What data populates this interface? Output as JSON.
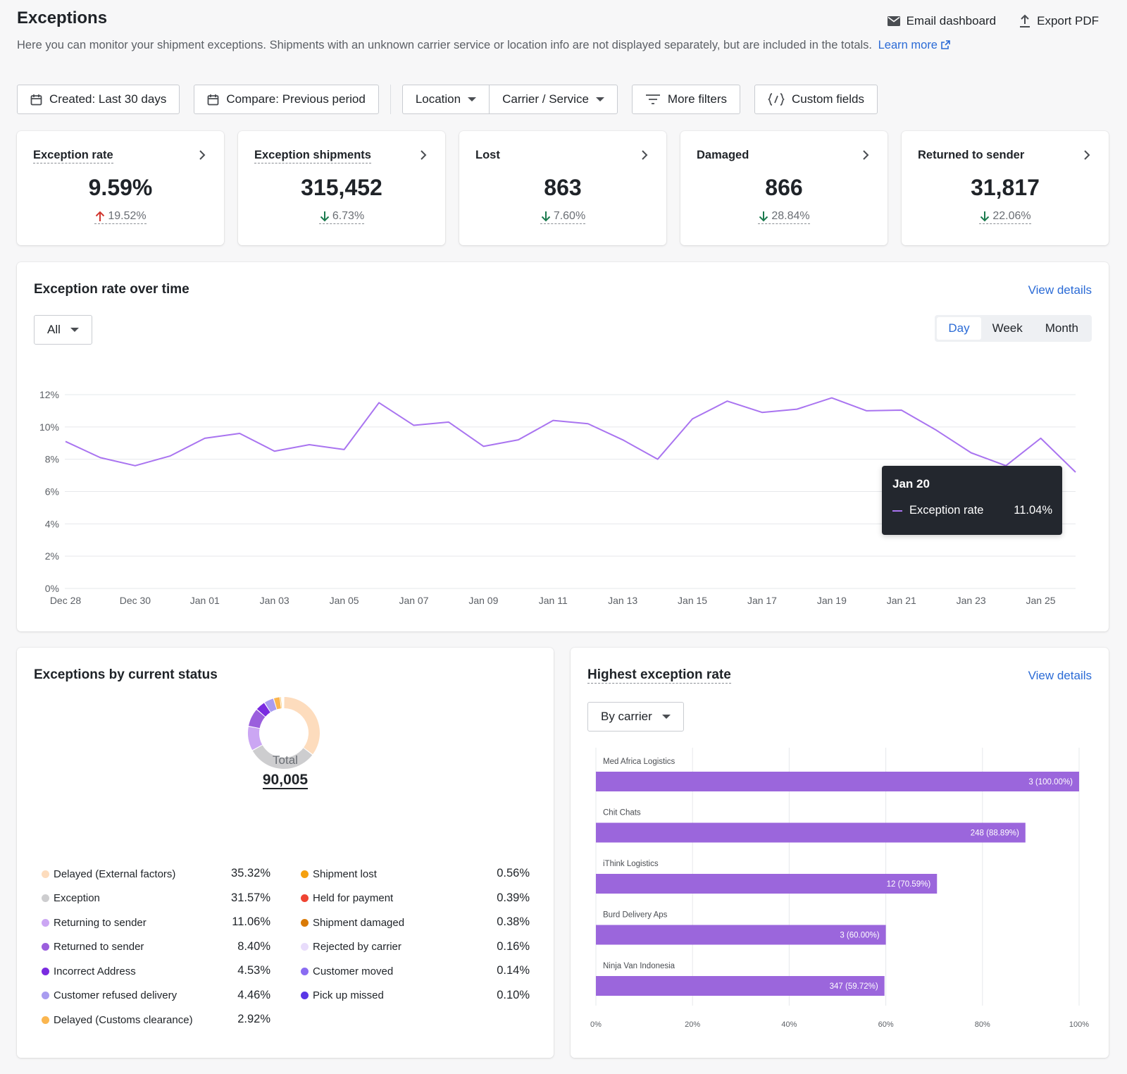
{
  "header": {
    "title": "Exceptions",
    "subtitle": "Here you can monitor your shipment exceptions. Shipments with an unknown carrier service or location info are not displayed separately, but are included in the totals.",
    "learn_more": "Learn more",
    "email_dashboard": "Email dashboard",
    "export_pdf": "Export PDF"
  },
  "filters": {
    "created": "Created: Last 30 days",
    "compare": "Compare: Previous period",
    "location": "Location",
    "carrier_service": "Carrier / Service",
    "more_filters": "More filters",
    "custom_fields": "Custom fields"
  },
  "kpis": [
    {
      "label": "Exception rate",
      "value": "9.59%",
      "delta": "19.52%",
      "direction": "up"
    },
    {
      "label": "Exception shipments",
      "value": "315,452",
      "delta": "6.73%",
      "direction": "down"
    },
    {
      "label": "Lost",
      "value": "863",
      "delta": "7.60%",
      "direction": "down"
    },
    {
      "label": "Damaged",
      "value": "866",
      "delta": "28.84%",
      "direction": "down"
    },
    {
      "label": "Returned to sender",
      "value": "31,817",
      "delta": "22.06%",
      "direction": "down"
    }
  ],
  "colors": {
    "accent": "#2b6bd6",
    "up": "#d1372f",
    "down": "#1b7a4e",
    "line": "#a974f0",
    "bar": "#9b66dc"
  },
  "exception_over_time": {
    "title": "Exception rate over time",
    "view_details": "View details",
    "dropdown": "All",
    "periods": [
      "Day",
      "Week",
      "Month"
    ],
    "active_period": "Day",
    "tooltip": {
      "date": "Jan 20",
      "series": "Exception rate",
      "value": "11.04%"
    }
  },
  "status": {
    "title": "Exceptions by current status",
    "total_label": "Total",
    "total_value": "90,005",
    "items": [
      {
        "label": "Delayed (External factors)",
        "pct": "35.32%",
        "value": 35.32,
        "color": "#fddcbd"
      },
      {
        "label": "Exception",
        "pct": "31.57%",
        "value": 31.57,
        "color": "#cdcdcf"
      },
      {
        "label": "Returning to sender",
        "pct": "11.06%",
        "value": 11.06,
        "color": "#cba6f3"
      },
      {
        "label": "Returned to sender",
        "pct": "8.40%",
        "value": 8.4,
        "color": "#9b5fdd"
      },
      {
        "label": "Incorrect Address",
        "pct": "4.53%",
        "value": 4.53,
        "color": "#7a2be0"
      },
      {
        "label": "Customer refused delivery",
        "pct": "4.46%",
        "value": 4.46,
        "color": "#a99cf0"
      },
      {
        "label": "Delayed (Customs clearance)",
        "pct": "2.92%",
        "value": 2.92,
        "color": "#fbb64f"
      },
      {
        "label": "Shipment lost",
        "pct": "0.56%",
        "value": 0.56,
        "color": "#f5a00f"
      },
      {
        "label": "Held for payment",
        "pct": "0.39%",
        "value": 0.39,
        "color": "#ef4432"
      },
      {
        "label": "Shipment damaged",
        "pct": "0.38%",
        "value": 0.38,
        "color": "#d97a06"
      },
      {
        "label": "Rejected by carrier",
        "pct": "0.16%",
        "value": 0.16,
        "color": "#e8dcfb"
      },
      {
        "label": "Customer moved",
        "pct": "0.14%",
        "value": 0.14,
        "color": "#8a6cf2"
      },
      {
        "label": "Pick up missed",
        "pct": "0.10%",
        "value": 0.1,
        "color": "#5a37e6"
      }
    ]
  },
  "highest": {
    "title": "Highest exception rate",
    "view_details": "View details",
    "dropdown": "By carrier"
  },
  "chart_data": [
    {
      "type": "line",
      "title": "Exception rate over time",
      "xlabel": "",
      "ylabel": "",
      "ylim": [
        0,
        12
      ],
      "yticks": [
        "0%",
        "2%",
        "4%",
        "6%",
        "8%",
        "10%",
        "12%"
      ],
      "xticks": [
        "Dec 28",
        "Dec 30",
        "Jan 01",
        "Jan 03",
        "Jan 05",
        "Jan 07",
        "Jan 09",
        "Jan 11",
        "Jan 13",
        "Jan 15",
        "Jan 17",
        "Jan 19",
        "Jan 21",
        "Jan 23",
        "Jan 25"
      ],
      "grid": true,
      "series": [
        {
          "name": "Exception rate",
          "x": [
            "Dec 28",
            "Dec 29",
            "Dec 30",
            "Dec 31",
            "Jan 01",
            "Jan 02",
            "Jan 03",
            "Jan 04",
            "Jan 05",
            "Jan 06",
            "Jan 07",
            "Jan 08",
            "Jan 09",
            "Jan 10",
            "Jan 11",
            "Jan 12",
            "Jan 13",
            "Jan 14",
            "Jan 15",
            "Jan 16",
            "Jan 17",
            "Jan 18",
            "Jan 19",
            "Jan 20",
            "Jan 21",
            "Jan 22",
            "Jan 23",
            "Jan 24",
            "Jan 25",
            "Jan 26"
          ],
          "values": [
            9.1,
            8.1,
            7.6,
            8.2,
            9.3,
            9.6,
            8.5,
            8.9,
            8.6,
            11.5,
            10.1,
            10.3,
            8.8,
            9.2,
            10.4,
            10.2,
            9.2,
            8.0,
            10.5,
            11.6,
            10.9,
            11.1,
            11.8,
            11.0,
            11.04,
            9.8,
            8.4,
            7.6,
            9.3,
            7.2
          ]
        }
      ]
    },
    {
      "type": "pie",
      "title": "Exceptions by current status",
      "labels": [
        "Delayed (External factors)",
        "Exception",
        "Returning to sender",
        "Returned to sender",
        "Incorrect Address",
        "Customer refused delivery",
        "Delayed (Customs clearance)",
        "Shipment lost",
        "Held for payment",
        "Shipment damaged",
        "Rejected by carrier",
        "Customer moved",
        "Pick up missed"
      ],
      "values": [
        35.32,
        31.57,
        11.06,
        8.4,
        4.53,
        4.46,
        2.92,
        0.56,
        0.39,
        0.38,
        0.16,
        0.14,
        0.1
      ]
    },
    {
      "type": "bar",
      "orientation": "horizontal",
      "title": "Highest exception rate",
      "categories": [
        "Med Africa Logistics",
        "Chit Chats",
        "iThink Logistics",
        "Burd Delivery Aps",
        "Ninja Van Indonesia"
      ],
      "values": [
        100.0,
        88.89,
        70.59,
        60.0,
        59.72
      ],
      "data_labels": [
        "3 (100.00%)",
        "248 (88.89%)",
        "12 (70.59%)",
        "3 (60.00%)",
        "347 (59.72%)"
      ],
      "xlim": [
        0,
        100
      ],
      "xticks": [
        "0%",
        "20%",
        "40%",
        "60%",
        "80%",
        "100%"
      ],
      "grid": true
    }
  ]
}
